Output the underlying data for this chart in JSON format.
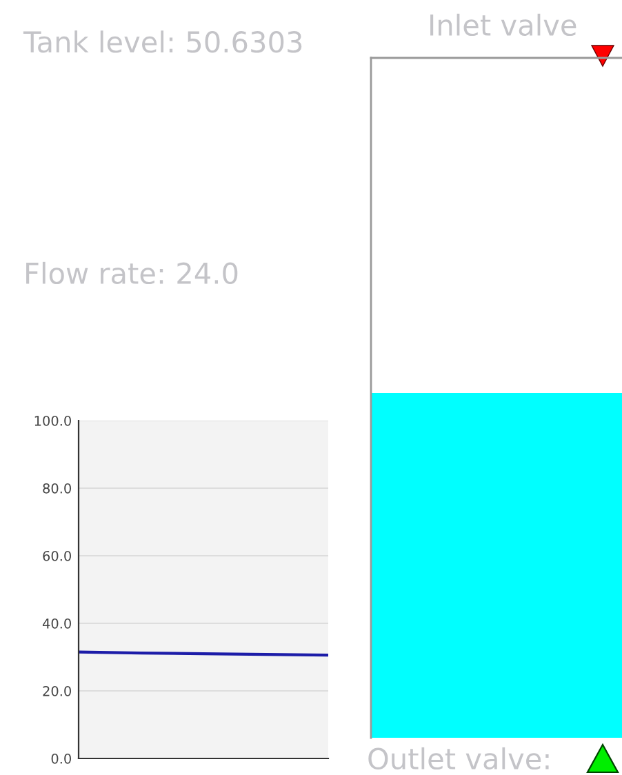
{
  "chart_data": [
    {
      "type": "line",
      "categories": [
        null,
        null,
        null,
        null,
        null
      ],
      "series": [
        {
          "color": "#1c1ca8",
          "values": [
            31.5,
            31.2,
            31.0,
            30.8,
            30.6
          ]
        }
      ],
      "ylim": [
        0,
        100
      ],
      "yticks": [
        {
          "value": 0,
          "label": "0.0"
        },
        {
          "value": 20,
          "label": "20.0"
        },
        {
          "value": 40,
          "label": "40.0"
        },
        {
          "value": 60,
          "label": "60.0"
        },
        {
          "value": 80,
          "label": "80.0"
        },
        {
          "value": 100,
          "label": "100.0"
        }
      ],
      "grid": "y",
      "tick_labels": "y",
      "marker": "none",
      "line_style": "solid"
    },
    {
      "type": "other",
      "title": "Tank level: 50.6303",
      "annotations": [
        "Flow rate: 24.0",
        "Inlet valve",
        "Outlet valve:"
      ]
    }
  ]
}
